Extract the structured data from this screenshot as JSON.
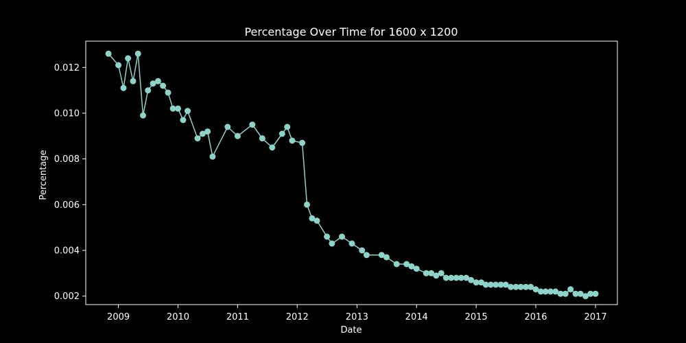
{
  "chart_data": {
    "type": "line",
    "title": "Percentage Over Time for 1600 x 1200",
    "xlabel": "Date",
    "ylabel": "Percentage",
    "x_ticks": [
      "2009",
      "2010",
      "2011",
      "2012",
      "2013",
      "2014",
      "2015",
      "2016",
      "2017"
    ],
    "y_ticks": [
      "0.002",
      "0.004",
      "0.006",
      "0.008",
      "0.010",
      "0.012"
    ],
    "xlim": [
      "2008-06-15",
      "2017-05-15"
    ],
    "ylim": [
      0.00163,
      0.01315
    ],
    "grid": false,
    "legend": "none",
    "marker": "circle",
    "colors": {
      "background": "#000000",
      "foreground": "#ffffff",
      "series": "#8dd3c7"
    },
    "series": [
      {
        "x": [
          "2008-11",
          "2009-01",
          "2009-02",
          "2009-03",
          "2009-04",
          "2009-05",
          "2009-06",
          "2009-07",
          "2009-08",
          "2009-09",
          "2009-10",
          "2009-11",
          "2009-12",
          "2010-01",
          "2010-02",
          "2010-03",
          "2010-05",
          "2010-06",
          "2010-07",
          "2010-08",
          "2010-11",
          "2011-01",
          "2011-04",
          "2011-06",
          "2011-08",
          "2011-10",
          "2011-11",
          "2011-12",
          "2012-02",
          "2012-03",
          "2012-04",
          "2012-05",
          "2012-07",
          "2012-08",
          "2012-10",
          "2012-12",
          "2013-02",
          "2013-03",
          "2013-06",
          "2013-07",
          "2013-09",
          "2013-11",
          "2013-12",
          "2014-01",
          "2014-03",
          "2014-04",
          "2014-05",
          "2014-06",
          "2014-07",
          "2014-08",
          "2014-09",
          "2014-10",
          "2014-11",
          "2014-12",
          "2015-01",
          "2015-02",
          "2015-03",
          "2015-04",
          "2015-05",
          "2015-06",
          "2015-07",
          "2015-08",
          "2015-09",
          "2015-10",
          "2015-11",
          "2015-12",
          "2016-01",
          "2016-02",
          "2016-03",
          "2016-04",
          "2016-05",
          "2016-06",
          "2016-07",
          "2016-08",
          "2016-09",
          "2016-10",
          "2016-11",
          "2016-12",
          "2017-01"
        ],
        "y": [
          0.0126,
          0.0121,
          0.0111,
          0.0124,
          0.0114,
          0.0126,
          0.0099,
          0.011,
          0.0113,
          0.0114,
          0.0112,
          0.0109,
          0.0102,
          0.0102,
          0.0097,
          0.0101,
          0.0089,
          0.0091,
          0.0092,
          0.0081,
          0.0094,
          0.009,
          0.0095,
          0.0089,
          0.0085,
          0.0091,
          0.0094,
          0.0088,
          0.0087,
          0.006,
          0.0054,
          0.0053,
          0.0046,
          0.0043,
          0.0046,
          0.0043,
          0.004,
          0.0038,
          0.0038,
          0.0037,
          0.0034,
          0.0034,
          0.0033,
          0.0032,
          0.003,
          0.003,
          0.0029,
          0.003,
          0.0028,
          0.0028,
          0.0028,
          0.0028,
          0.0028,
          0.0027,
          0.0026,
          0.0026,
          0.0025,
          0.0025,
          0.0025,
          0.0025,
          0.0025,
          0.0024,
          0.0024,
          0.0024,
          0.0024,
          0.0024,
          0.0023,
          0.0022,
          0.0022,
          0.0022,
          0.0022,
          0.0021,
          0.0021,
          0.0023,
          0.0021,
          0.0021,
          0.002,
          0.0021,
          0.0021
        ]
      }
    ]
  }
}
